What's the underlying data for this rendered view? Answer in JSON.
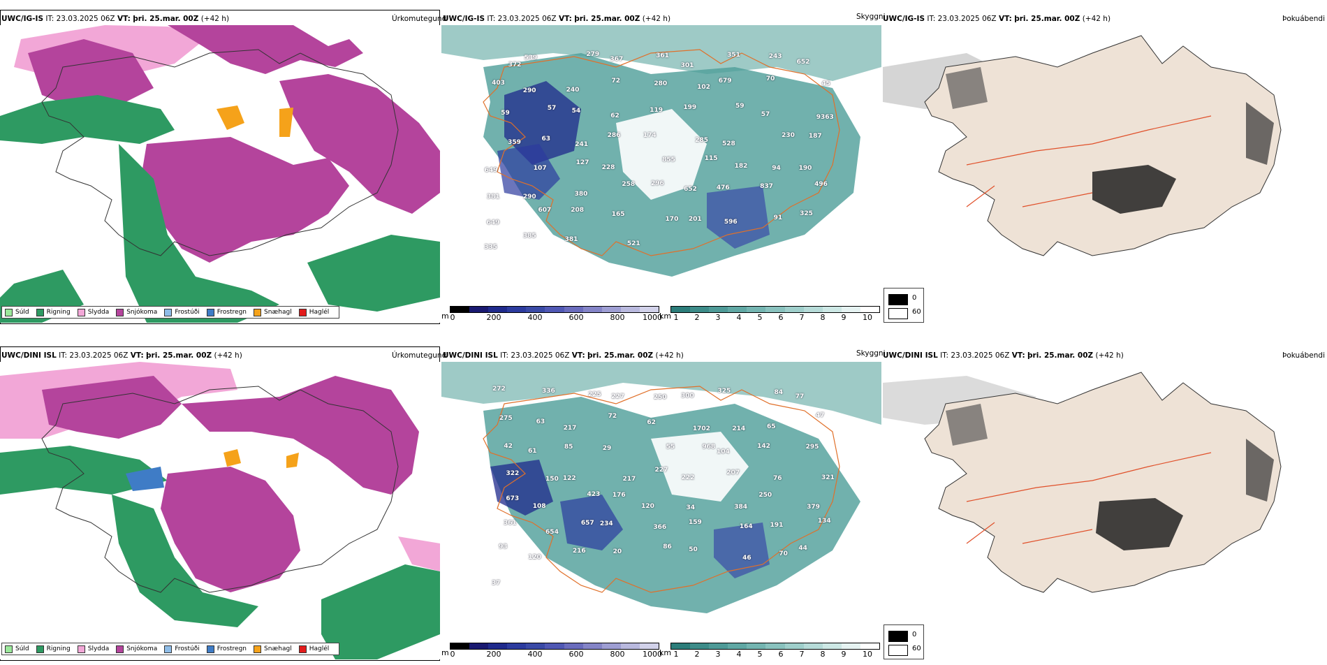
{
  "colors": {
    "sudl": "#9be89b",
    "rigning": "#2e9a62",
    "slydda": "#f2a7d7",
    "snjokoma": "#b4449c",
    "frostudi": "#8fbde8",
    "frostregn": "#3f7cc6",
    "snaehagl": "#f5a21a",
    "haglel": "#e21b1b",
    "cloud": "#4e9e98",
    "terrain_dark": "#1c1c8c",
    "fog_land": "#eee2d6",
    "roads": "#e0702a"
  },
  "rows": [
    {
      "header": {
        "model": "UWC/IG-IS",
        "it_label": "IT:",
        "it_value": "23.03.2025 06Z",
        "vt_label": "VT:",
        "vt_value": "þri. 25.mar. 00Z",
        "lead": "(+42 h)"
      },
      "titles": {
        "precip_type": "Úrkomutegund",
        "cloud": "Skyggni",
        "fog": "Þokuábendi"
      },
      "peak_labels": [
        "372",
        "539",
        "279",
        "367",
        "361",
        "301",
        "351",
        "243",
        "652",
        "403",
        "290",
        "240",
        "72",
        "280",
        "102",
        "679",
        "70",
        "45",
        "59",
        "57",
        "54",
        "62",
        "119",
        "199",
        "59",
        "57",
        "9363",
        "359",
        "63",
        "241",
        "286",
        "174",
        "285",
        "528",
        "230",
        "187",
        "649",
        "107",
        "127",
        "228",
        "855",
        "115",
        "182",
        "94",
        "190",
        "381",
        "290",
        "380",
        "258",
        "296",
        "652",
        "476",
        "837",
        "496",
        "649",
        "607",
        "208",
        "165",
        "170",
        "201",
        "596",
        "91",
        "325",
        "335",
        "385",
        "381",
        "521"
      ]
    },
    {
      "header": {
        "model": "UWC/DINI ISL",
        "it_label": "IT:",
        "it_value": "23.03.2025 06Z",
        "vt_label": "VT:",
        "vt_value": "þri. 25.mar. 00Z",
        "lead": "(+42 h)"
      },
      "titles": {
        "precip_type": "Úrkomutegund",
        "cloud": "Skyggni",
        "fog": "Þokuábendi"
      },
      "peak_labels": [
        "272",
        "336",
        "225",
        "227",
        "250",
        "300",
        "325",
        "84",
        "77",
        "275",
        "63",
        "217",
        "72",
        "62",
        "1702",
        "214",
        "65",
        "47",
        "42",
        "61",
        "85",
        "29",
        "55",
        "968",
        "104",
        "142",
        "295",
        "322",
        "150",
        "122",
        "217",
        "227",
        "222",
        "207",
        "76",
        "321",
        "673",
        "108",
        "423",
        "176",
        "120",
        "34",
        "384",
        "250",
        "379",
        "361",
        "654",
        "657",
        "234",
        "366",
        "159",
        "164",
        "191",
        "134",
        "93",
        "120",
        "216",
        "20",
        "86",
        "50",
        "46",
        "70",
        "44",
        "37"
      ]
    }
  ],
  "legend": {
    "items": [
      {
        "key": "sudl",
        "label": "Súld"
      },
      {
        "key": "rigning",
        "label": "Rigning"
      },
      {
        "key": "slydda",
        "label": "Slydda"
      },
      {
        "key": "snjokoma",
        "label": "Snjókoma"
      },
      {
        "key": "frostudi",
        "label": "Frostúði"
      },
      {
        "key": "frostregn",
        "label": "Frostregn"
      },
      {
        "key": "snaehagl",
        "label": "Snæhagl"
      },
      {
        "key": "haglel",
        "label": "Haglél"
      }
    ]
  },
  "colorbars": {
    "height": {
      "unit": "m",
      "ticks": [
        "0",
        "200",
        "400",
        "600",
        "800",
        "1000"
      ],
      "colors": [
        "#000000",
        "#191970",
        "#1f2a8c",
        "#2c3b9e",
        "#3a4aa6",
        "#5058b4",
        "#6a6cbd",
        "#8484c7",
        "#9e9ed3",
        "#b9b9de",
        "#d2d2ea"
      ]
    },
    "cloud": {
      "unit": "km",
      "ticks": [
        "1",
        "2",
        "3",
        "4",
        "5",
        "6",
        "7",
        "8",
        "9",
        "10"
      ],
      "colors": [
        "#2c7d7a",
        "#3d8c89",
        "#4e9a97",
        "#60a8a4",
        "#74b5b1",
        "#89c2be",
        "#9fcfcb",
        "#b6dbd8",
        "#cde8e5",
        "#e6f3f2",
        "#ffffff"
      ]
    }
  },
  "fog_legend": {
    "labels": [
      "0",
      "60"
    ]
  }
}
